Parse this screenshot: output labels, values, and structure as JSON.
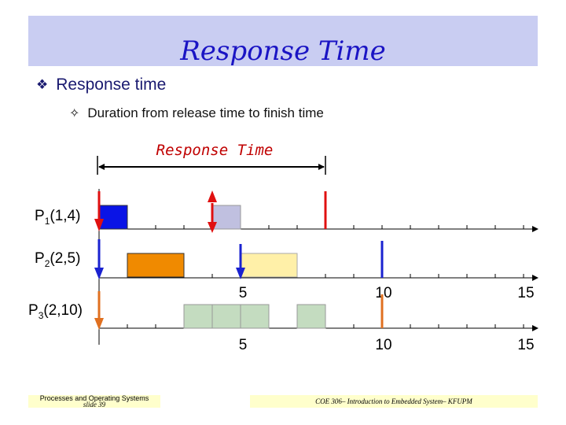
{
  "title": "Response Time",
  "bullets": {
    "main": "Response time",
    "sub": "Duration from release time to finish time"
  },
  "diagram": {
    "annotation": "Response Time",
    "processes": [
      {
        "name": "P",
        "sub": "1",
        "params": "(1,4)"
      },
      {
        "name": "P",
        "sub": "2",
        "params": "(2,5)"
      },
      {
        "name": "P",
        "sub": "3",
        "params": "(2,10)"
      }
    ],
    "tick_labels": [
      "5",
      "10",
      "15"
    ],
    "colors": {
      "p1_block": "#0a14e6",
      "p1_block_later": "#c0c0e0",
      "p2_block": "#f08a00",
      "p2_block_later": "#fff0a8",
      "p3_block": "#c4dcc0",
      "release_red": "#e01010",
      "release_blue": "#1a22d0",
      "release_orange": "#e07020"
    }
  },
  "footer": {
    "left_line1": "Processes and Operating Systems",
    "left_line2": "slide 39",
    "right": "COE 306– Introduction to Embedded System– KFUPM"
  }
}
